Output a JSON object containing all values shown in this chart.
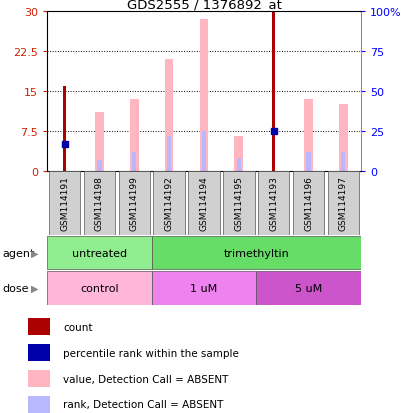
{
  "title": "GDS2555 / 1376892_at",
  "samples": [
    "GSM114191",
    "GSM114198",
    "GSM114199",
    "GSM114192",
    "GSM114194",
    "GSM114195",
    "GSM114193",
    "GSM114196",
    "GSM114197"
  ],
  "count": [
    16,
    0,
    0,
    0,
    0,
    0,
    30,
    0,
    0
  ],
  "percentile_rank": [
    5.0,
    0,
    0,
    0,
    0,
    0,
    7.5,
    0,
    0
  ],
  "value_absent": [
    0,
    11.0,
    13.5,
    21.0,
    28.5,
    6.5,
    0,
    13.5,
    12.5
  ],
  "rank_absent": [
    0,
    2.0,
    3.5,
    6.5,
    7.5,
    2.5,
    0,
    3.5,
    3.5
  ],
  "agent_groups": [
    {
      "label": "untreated",
      "start": 0,
      "end": 3,
      "color": "#90EE90"
    },
    {
      "label": "trimethyltin",
      "start": 3,
      "end": 9,
      "color": "#66DD66"
    }
  ],
  "dose_groups": [
    {
      "label": "control",
      "start": 0,
      "end": 3,
      "color": "#FFB6D9"
    },
    {
      "label": "1 uM",
      "start": 3,
      "end": 6,
      "color": "#EE82EE"
    },
    {
      "label": "5 uM",
      "start": 6,
      "end": 9,
      "color": "#CC55CC"
    }
  ],
  "ylim_left": [
    0,
    30
  ],
  "ylim_right": [
    0,
    100
  ],
  "yticks_left": [
    0,
    7.5,
    15,
    22.5,
    30
  ],
  "yticks_right": [
    0,
    25,
    50,
    75,
    100
  ],
  "ytick_labels_left": [
    "0",
    "7.5",
    "15",
    "22.5",
    "30"
  ],
  "ytick_labels_right": [
    "0",
    "25",
    "50",
    "75",
    "100%"
  ],
  "color_count": "#AA0000",
  "color_rank": "#0000AA",
  "color_value_absent": "#FFB6C1",
  "color_rank_absent": "#B8B8FF",
  "legend_items": [
    {
      "label": "count",
      "color": "#AA0000",
      "marker": "square"
    },
    {
      "label": "percentile rank within the sample",
      "color": "#0000AA",
      "marker": "square"
    },
    {
      "label": "value, Detection Call = ABSENT",
      "color": "#FFB6C1",
      "marker": "square"
    },
    {
      "label": "rank, Detection Call = ABSENT",
      "color": "#B8B8FF",
      "marker": "square"
    }
  ]
}
